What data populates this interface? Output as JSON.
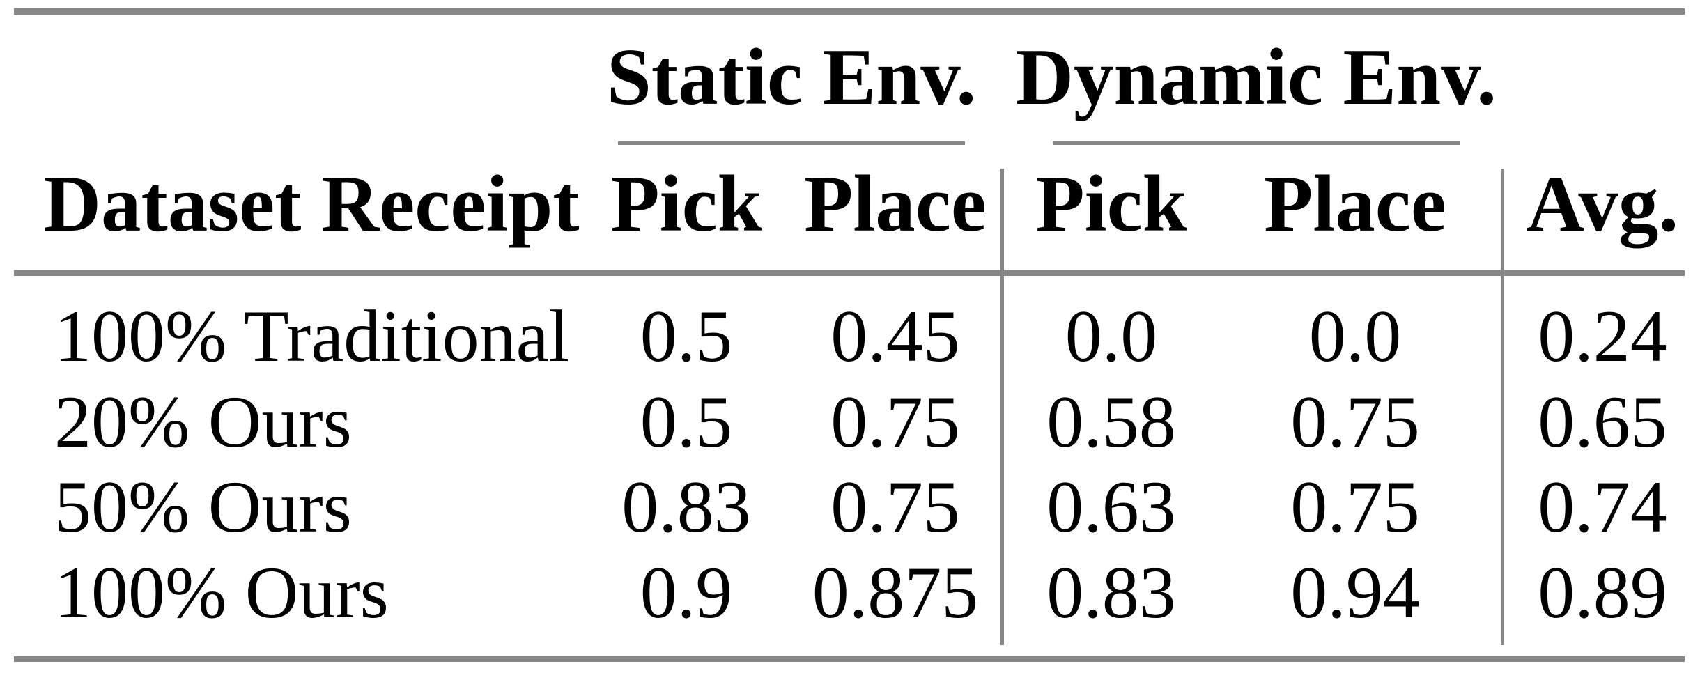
{
  "table": {
    "col_groups": [
      {
        "label": "Static Env.",
        "span": 2
      },
      {
        "label": "Dynamic Env.",
        "span": 2
      }
    ],
    "headers": [
      "Dataset Receipt",
      "Pick",
      "Place",
      "Pick",
      "Place",
      "Avg."
    ],
    "rows": [
      [
        "100% Traditional",
        "0.5",
        "0.45",
        "0.0",
        "0.0",
        "0.24"
      ],
      [
        "20% Ours",
        "0.5",
        "0.75",
        "0.58",
        "0.75",
        "0.65"
      ],
      [
        "50% Ours",
        "0.83",
        "0.75",
        "0.63",
        "0.75",
        "0.74"
      ],
      [
        "100% Ours",
        "0.9",
        "0.875",
        "0.83",
        "0.94",
        "0.89"
      ]
    ]
  },
  "colors": {
    "rule_gray": "#878787",
    "text": "#000000",
    "background": "#ffffff"
  }
}
